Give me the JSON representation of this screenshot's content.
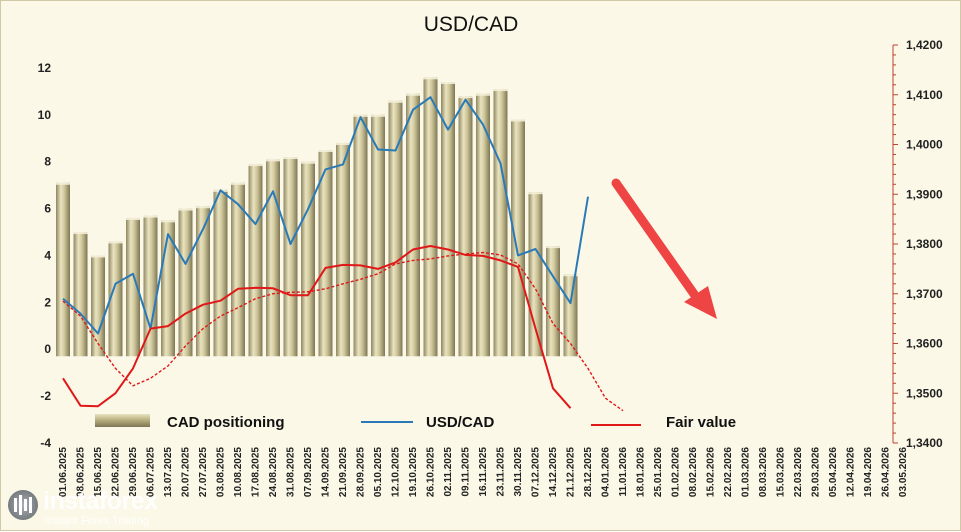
{
  "chart_data": {
    "type": "bar+line",
    "title": "USD/CAD",
    "x_dates": [
      "01.06.2025",
      "08.06.2025",
      "15.06.2025",
      "22.06.2025",
      "29.06.2025",
      "06.07.2025",
      "13.07.2025",
      "20.07.2025",
      "27.07.2025",
      "03.08.2025",
      "10.08.2025",
      "17.08.2025",
      "24.08.2025",
      "31.08.2025",
      "07.09.2025",
      "14.09.2025",
      "21.09.2025",
      "28.09.2025",
      "05.10.2025",
      "12.10.2025",
      "19.10.2025",
      "26.10.2025",
      "02.11.2025",
      "09.11.2025",
      "16.11.2025",
      "23.11.2025",
      "30.11.2025",
      "07.12.2025",
      "14.12.2025",
      "21.12.2025",
      "28.12.2025",
      "04.01.2026",
      "11.01.2026",
      "18.01.2026",
      "25.01.2026",
      "01.02.2026",
      "08.02.2026",
      "15.02.2026",
      "22.02.2026",
      "01.03.2026",
      "08.03.2026",
      "15.03.2026",
      "22.03.2026",
      "29.03.2026",
      "05.04.2026",
      "12.04.2026",
      "19.04.2026",
      "26.04.2026",
      "03.05.2026"
    ],
    "left_axis": {
      "ylim": [
        -4,
        13
      ],
      "ticks": [
        "-4",
        "-2",
        "0",
        "2",
        "4",
        "6",
        "8",
        "10",
        "12"
      ]
    },
    "right_axis": {
      "ylim": [
        1.34,
        1.42
      ],
      "ticks": [
        "1,3400",
        "1,3500",
        "1,3600",
        "1,3700",
        "1,3800",
        "1,3900",
        "1,4000",
        "1,4100",
        "1,4200"
      ]
    },
    "series": [
      {
        "name": "CAD positioning",
        "axis": "left",
        "kind": "bar",
        "color": "#c8c08e",
        "values": [
          7.1,
          5.0,
          4.0,
          4.6,
          5.6,
          5.7,
          5.5,
          6.0,
          6.1,
          6.8,
          7.1,
          7.9,
          8.1,
          8.2,
          8.0,
          8.5,
          8.8,
          10.0,
          10.0,
          10.6,
          10.9,
          11.6,
          11.4,
          10.8,
          10.9,
          11.1,
          9.8,
          6.7,
          4.4,
          3.2
        ]
      },
      {
        "name": "USD/CAD",
        "axis": "right",
        "kind": "line",
        "color": "#2a7ab8",
        "values": [
          1.369,
          1.366,
          1.362,
          1.372,
          1.374,
          1.363,
          1.382,
          1.376,
          1.383,
          1.3908,
          1.388,
          1.384,
          1.3906,
          1.38,
          1.387,
          1.395,
          1.396,
          1.4055,
          1.399,
          1.3988,
          1.407,
          1.4095,
          1.403,
          1.409,
          1.404,
          1.3962,
          1.3777,
          1.379,
          1.3735,
          1.3681,
          1.3895
        ]
      },
      {
        "name": "Fair value",
        "axis": "right",
        "kind": "line",
        "color": "#e01818",
        "values": [
          1.353,
          1.3475,
          1.3474,
          1.35,
          1.355,
          1.363,
          1.3635,
          1.366,
          1.3678,
          1.3686,
          1.371,
          1.3712,
          1.3711,
          1.3697,
          1.3697,
          1.3752,
          1.3758,
          1.3757,
          1.375,
          1.3763,
          1.3789,
          1.3796,
          1.3789,
          1.3778,
          1.3776,
          1.3767,
          1.3754,
          1.363,
          1.351,
          1.347
        ]
      },
      {
        "name": "Fair value projection",
        "axis": "right",
        "kind": "dashed-line",
        "color": "#e01818",
        "values": [
          1.3685,
          1.3655,
          1.36,
          1.355,
          1.3515,
          1.353,
          1.3555,
          1.3595,
          1.363,
          1.3655,
          1.3672,
          1.369,
          1.37,
          1.3703,
          1.3704,
          1.371,
          1.372,
          1.3729,
          1.374,
          1.376,
          1.3767,
          1.377,
          1.3776,
          1.378,
          1.3783,
          1.3778,
          1.376,
          1.371,
          1.364,
          1.36,
          1.355,
          1.349,
          1.3465
        ]
      }
    ],
    "legend": [
      "CAD positioning",
      "USD/CAD",
      "Fair value"
    ],
    "legend_position": "bottom",
    "annotation": "red arrow pointing down-right (bearish forecast)"
  },
  "watermark": {
    "name": "instaforex",
    "sub": "Instant Forex Trading"
  },
  "colors": {
    "background": "#fbf8e7",
    "bar": "#c8c08e",
    "usdcad": "#2a7ab8",
    "fair": "#e01818",
    "arrow": "#ef4444"
  }
}
